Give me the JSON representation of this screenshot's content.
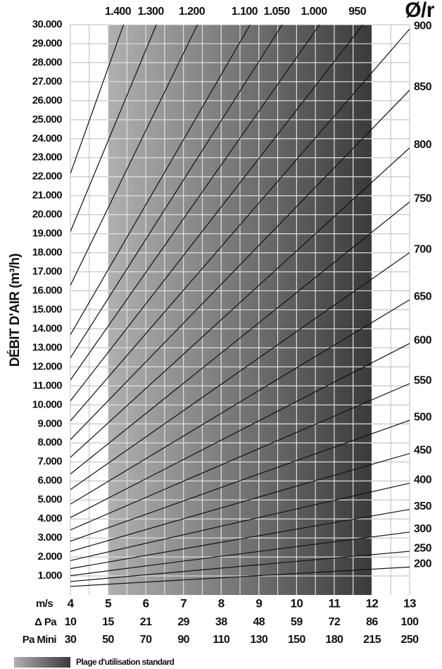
{
  "chart_data": {
    "type": "line",
    "y_label": "DÉBIT D'AIR (m³/h)",
    "corner_label": "Ø/r",
    "legend_label": "Plage d'utilisation standard",
    "xlim": [
      4,
      13
    ],
    "ylim": [
      0,
      30000
    ],
    "xticks": [
      4,
      5,
      6,
      7,
      8,
      9,
      10,
      11,
      12,
      13
    ],
    "xgrid": [
      4,
      4.5,
      5,
      5.5,
      6,
      6.5,
      7,
      7.5,
      8,
      8.5,
      9,
      9.5,
      10,
      10.5,
      11,
      11.5,
      12,
      12.5,
      13
    ],
    "x_label": "m/s",
    "xtick_rows": [
      {
        "name": "Δ Pa",
        "values": [
          10,
          15,
          21,
          29,
          38,
          48,
          59,
          72,
          86,
          100
        ]
      },
      {
        "name": "Pa Mini",
        "values": [
          30,
          50,
          70,
          90,
          110,
          130,
          150,
          180,
          215,
          250
        ]
      }
    ],
    "yticks": [
      {
        "value": 1000,
        "label": "1.000"
      },
      {
        "value": 2000,
        "label": "2.000"
      },
      {
        "value": 3000,
        "label": "3.000"
      },
      {
        "value": 4000,
        "label": "4.000"
      },
      {
        "value": 5000,
        "label": "5.000"
      },
      {
        "value": 6000,
        "label": "6.000"
      },
      {
        "value": 7000,
        "label": "7.000"
      },
      {
        "value": 8000,
        "label": "8.000"
      },
      {
        "value": 9000,
        "label": "9.000"
      },
      {
        "value": 10000,
        "label": "10.000"
      },
      {
        "value": 11000,
        "label": "11.000"
      },
      {
        "value": 12000,
        "label": "12.000"
      },
      {
        "value": 13000,
        "label": "13.000"
      },
      {
        "value": 14000,
        "label": "14.000"
      },
      {
        "value": 15000,
        "label": "15.000"
      },
      {
        "value": 16000,
        "label": "16.000"
      },
      {
        "value": 17000,
        "label": "17.000"
      },
      {
        "value": 18000,
        "label": "18.000"
      },
      {
        "value": 19000,
        "label": "19.000"
      },
      {
        "value": 20000,
        "label": "20.000"
      },
      {
        "value": 21000,
        "label": "21.000"
      },
      {
        "value": 22000,
        "label": "22.000"
      },
      {
        "value": 23000,
        "label": "23.000"
      },
      {
        "value": 24000,
        "label": "24.000"
      },
      {
        "value": 25000,
        "label": "25.000"
      },
      {
        "value": 26000,
        "label": "26.000"
      },
      {
        "value": 27000,
        "label": "27.000"
      },
      {
        "value": 28000,
        "label": "28.000"
      },
      {
        "value": 29000,
        "label": "29.000"
      },
      {
        "value": 30000,
        "label": "30.000"
      }
    ],
    "shaded_range": [
      5,
      12
    ],
    "shade_colors": [
      "#b0b0b0",
      "#3a3a3a"
    ],
    "grid": true,
    "series": [
      {
        "name": "200",
        "color": "#111111",
        "x": [
          4,
          13
        ],
        "values": [
          452,
          1470
        ]
      },
      {
        "name": "250",
        "color": "#111111",
        "x": [
          4,
          13
        ],
        "values": [
          707,
          2297
        ]
      },
      {
        "name": "300",
        "color": "#111111",
        "x": [
          4,
          13
        ],
        "values": [
          1018,
          3308
        ]
      },
      {
        "name": "350",
        "color": "#111111",
        "x": [
          4,
          13
        ],
        "values": [
          1385,
          4503
        ]
      },
      {
        "name": "400",
        "color": "#111111",
        "x": [
          4,
          13
        ],
        "values": [
          1810,
          5881
        ]
      },
      {
        "name": "450",
        "color": "#111111",
        "x": [
          4,
          13
        ],
        "values": [
          2290,
          7443
        ]
      },
      {
        "name": "500",
        "color": "#111111",
        "x": [
          4,
          13
        ],
        "values": [
          2827,
          9189
        ]
      },
      {
        "name": "550",
        "color": "#111111",
        "x": [
          4,
          13
        ],
        "values": [
          3421,
          11119
        ]
      },
      {
        "name": "600",
        "color": "#111111",
        "x": [
          4,
          13
        ],
        "values": [
          4072,
          13232
        ]
      },
      {
        "name": "650",
        "color": "#111111",
        "x": [
          4,
          13
        ],
        "values": [
          4778,
          15529
        ]
      },
      {
        "name": "700",
        "color": "#111111",
        "x": [
          4,
          13
        ],
        "values": [
          5542,
          18010
        ]
      },
      {
        "name": "750",
        "color": "#111111",
        "x": [
          4,
          13
        ],
        "values": [
          6362,
          20675
        ]
      },
      {
        "name": "800",
        "color": "#111111",
        "x": [
          4,
          13
        ],
        "values": [
          7238,
          23524
        ]
      },
      {
        "name": "850",
        "color": "#111111",
        "x": [
          4,
          13
        ],
        "values": [
          8171,
          26557
        ]
      },
      {
        "name": "900",
        "color": "#111111",
        "x": [
          4,
          13
        ],
        "values": [
          9161,
          29773
        ]
      },
      {
        "name": "950",
        "color": "#111111",
        "x": [
          4,
          11.76
        ],
        "values": [
          10207,
          30000
        ]
      },
      {
        "name": "1.000",
        "color": "#111111",
        "x": [
          4,
          10.61
        ],
        "values": [
          11310,
          30000
        ]
      },
      {
        "name": "1.050",
        "color": "#111111",
        "x": [
          4,
          9.62
        ],
        "values": [
          12469,
          30000
        ]
      },
      {
        "name": "1.100",
        "color": "#111111",
        "x": [
          4,
          8.77
        ],
        "values": [
          13685,
          30000
        ]
      },
      {
        "name": "1.200",
        "color": "#111111",
        "x": [
          4,
          7.37
        ],
        "values": [
          16286,
          30000
        ]
      },
      {
        "name": "1.300",
        "color": "#111111",
        "x": [
          4,
          6.28
        ],
        "values": [
          19113,
          30000
        ]
      },
      {
        "name": "1.400",
        "color": "#111111",
        "x": [
          4,
          5.41
        ],
        "values": [
          22167,
          30000
        ]
      }
    ]
  }
}
